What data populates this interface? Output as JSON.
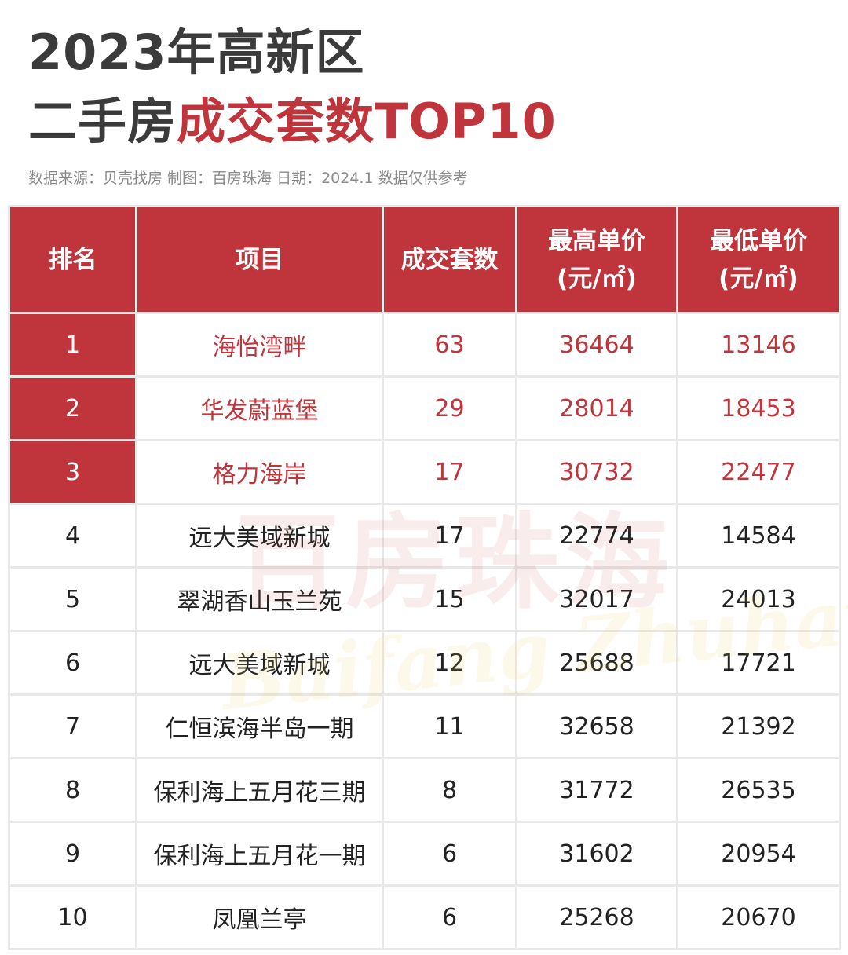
{
  "header": {
    "title_line1": "2023年高新区",
    "title_line2_plain": "二手房",
    "title_line2_accent": "成交套数TOP10",
    "source_line": "数据来源：贝壳找房  制图：百房珠海  日期：2024.1  数据仅供参考"
  },
  "watermark": {
    "cn": "百房珠海",
    "en": "Baifang Zhuhai"
  },
  "colors": {
    "accent": "#c0353b",
    "title": "#3b3b3b"
  },
  "table": {
    "columns": [
      "排名",
      "项目",
      "成交套数",
      "最高单价",
      "最低单价"
    ],
    "unit": "(元/㎡)",
    "rows": [
      {
        "rank": "1",
        "project": "海怡湾畔",
        "deals": "63",
        "max_price": "36464",
        "min_price": "13146"
      },
      {
        "rank": "2",
        "project": "华发蔚蓝堡",
        "deals": "29",
        "max_price": "28014",
        "min_price": "18453"
      },
      {
        "rank": "3",
        "project": "格力海岸",
        "deals": "17",
        "max_price": "30732",
        "min_price": "22477"
      },
      {
        "rank": "4",
        "project": "远大美域新城",
        "deals": "17",
        "max_price": "22774",
        "min_price": "14584"
      },
      {
        "rank": "5",
        "project": "翠湖香山玉兰苑",
        "deals": "15",
        "max_price": "32017",
        "min_price": "24013"
      },
      {
        "rank": "6",
        "project": "远大美域新城",
        "deals": "12",
        "max_price": "25688",
        "min_price": "17721"
      },
      {
        "rank": "7",
        "project": "仁恒滨海半岛一期",
        "deals": "11",
        "max_price": "32658",
        "min_price": "21392"
      },
      {
        "rank": "8",
        "project": "保利海上五月花三期",
        "deals": "8",
        "max_price": "31772",
        "min_price": "26535"
      },
      {
        "rank": "9",
        "project": "保利海上五月花一期",
        "deals": "6",
        "max_price": "31602",
        "min_price": "20954"
      },
      {
        "rank": "10",
        "project": "凤凰兰亭",
        "deals": "6",
        "max_price": "25268",
        "min_price": "20670"
      }
    ]
  },
  "chart_data": {
    "type": "table",
    "title": "2023年高新区二手房成交套数TOP10",
    "columns": [
      "排名",
      "项目",
      "成交套数",
      "最高单价(元/㎡)",
      "最低单价(元/㎡)"
    ],
    "rows": [
      [
        1,
        "海怡湾畔",
        63,
        36464,
        13146
      ],
      [
        2,
        "华发蔚蓝堡",
        29,
        28014,
        18453
      ],
      [
        3,
        "格力海岸",
        17,
        30732,
        22477
      ],
      [
        4,
        "远大美域新城",
        17,
        22774,
        14584
      ],
      [
        5,
        "翠湖香山玉兰苑",
        15,
        32017,
        24013
      ],
      [
        6,
        "远大美域新城",
        12,
        25688,
        17721
      ],
      [
        7,
        "仁恒滨海半岛一期",
        11,
        32658,
        21392
      ],
      [
        8,
        "保利海上五月花三期",
        8,
        31772,
        26535
      ],
      [
        9,
        "保利海上五月花一期",
        6,
        31602,
        20954
      ],
      [
        10,
        "凤凰兰亭",
        6,
        25268,
        20670
      ]
    ]
  }
}
